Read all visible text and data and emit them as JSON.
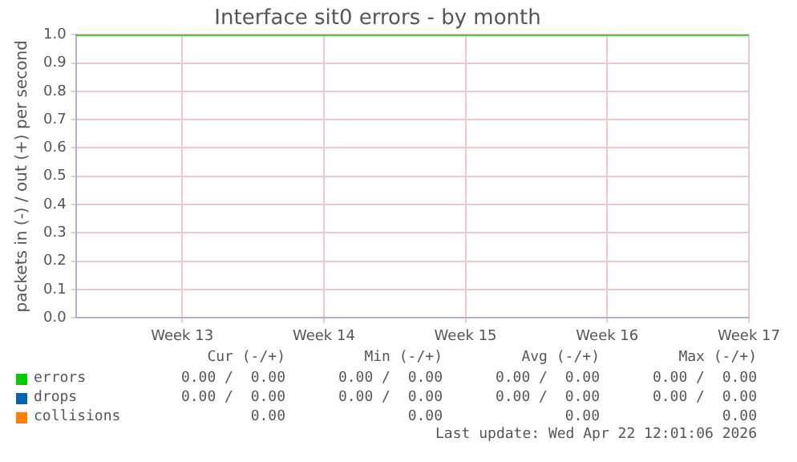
{
  "chart_data": {
    "type": "line",
    "title": "Interface sit0 errors - by month",
    "ylabel": "packets in (-) / out (+) per second",
    "x": [
      "2026-03-17T18:00",
      "2026-04-20T00:00"
    ],
    "series": [
      {
        "name": "errors",
        "color": "#00cc00",
        "values": [
          1,
          1
        ]
      },
      {
        "name": "drops",
        "color": "#0066b3",
        "values": [
          null,
          null
        ]
      },
      {
        "name": "collisions",
        "color": "#ff8000",
        "values": [
          null,
          null
        ]
      }
    ],
    "xlim": [
      "2026-03-17T18:00",
      "2026-04-20T00:00"
    ],
    "xticks": [
      {
        "value": "2026-03-23",
        "label": "Week 13"
      },
      {
        "value": "2026-03-30",
        "label": "Week 14"
      },
      {
        "value": "2026-04-06",
        "label": "Week 15"
      },
      {
        "value": "2026-04-13",
        "label": "Week 16"
      },
      {
        "value": "2026-04-20",
        "label": "Week 17"
      }
    ],
    "ylim": [
      0,
      1
    ],
    "yticks": [
      {
        "value": 0,
        "label": "0.0"
      },
      {
        "value": 0.1,
        "label": "0.1"
      },
      {
        "value": 0.2,
        "label": "0.2"
      },
      {
        "value": 0.3,
        "label": "0.3"
      },
      {
        "value": 0.4,
        "label": "0.4"
      },
      {
        "value": 0.5,
        "label": "0.5"
      },
      {
        "value": 0.6,
        "label": "0.6"
      },
      {
        "value": 0.7,
        "label": "0.7"
      },
      {
        "value": 0.8,
        "label": "0.8"
      },
      {
        "value": 0.9,
        "label": "0.9"
      },
      {
        "value": 1,
        "label": "1.0"
      }
    ],
    "grid": true,
    "legend": "bottom",
    "marker": "none",
    "line_style": "solid",
    "annotations": [
      "Cur (-/+)",
      "Min (-/+)",
      "Avg (-/+)",
      "Max (-/+)",
      "0.00 /  0.00",
      "0.00 /  0.00",
      "0.00 /  0.00",
      "0.00 /  0.00",
      "0.00 /  0.00",
      "0.00 /  0.00",
      "0.00 /  0.00",
      "0.00 /  0.00",
      "0.00",
      "0.00",
      "0.00",
      "0.00",
      "Last update: Wed Apr 22 12:01:06 2026"
    ]
  }
}
